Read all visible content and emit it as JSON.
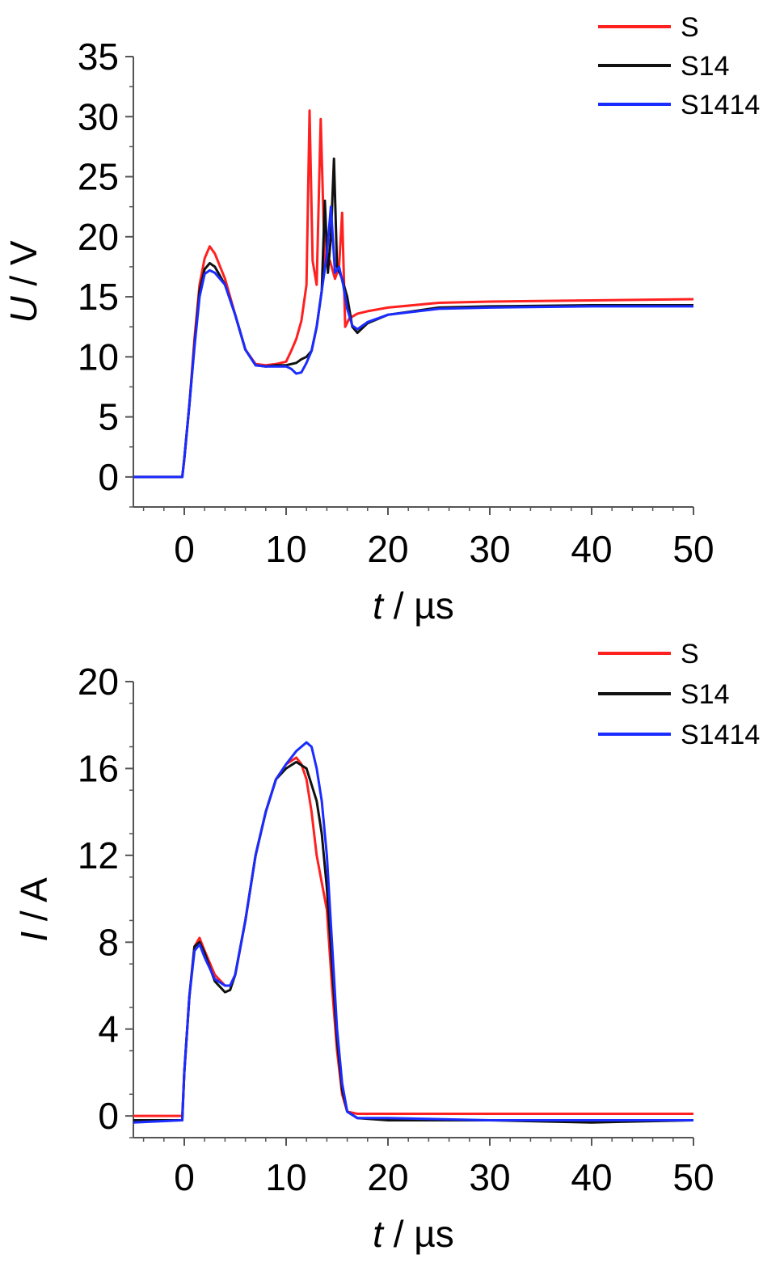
{
  "chart_data": [
    {
      "type": "line",
      "title": "",
      "xlabel_italic": "t",
      "xlabel_unit": " / µs",
      "ylabel_italic": "U",
      "ylabel_unit": " / V",
      "xlim": [
        -5,
        50
      ],
      "ylim": [
        -2.5,
        35
      ],
      "xticks": [
        0,
        10,
        20,
        30,
        40,
        50
      ],
      "yticks": [
        0,
        5,
        10,
        15,
        20,
        25,
        30,
        35
      ],
      "x_minor_step": 2,
      "y_minor_step": 2.5,
      "grid": false,
      "legend_position": "top-right",
      "series": [
        {
          "name": "S",
          "color": "#ff2020",
          "points": [
            [
              -5,
              0
            ],
            [
              -0.2,
              0
            ],
            [
              0,
              1.5
            ],
            [
              0.5,
              6
            ],
            [
              1,
              11.5
            ],
            [
              1.5,
              16
            ],
            [
              2,
              18.2
            ],
            [
              2.5,
              19.2
            ],
            [
              3,
              18.6
            ],
            [
              4,
              16.5
            ],
            [
              5,
              13.5
            ],
            [
              6,
              10.6
            ],
            [
              7,
              9.4
            ],
            [
              8,
              9.3
            ],
            [
              9,
              9.4
            ],
            [
              10,
              9.6
            ],
            [
              10.5,
              10.5
            ],
            [
              11,
              11.5
            ],
            [
              11.5,
              13
            ],
            [
              12,
              16
            ],
            [
              12.3,
              30.5
            ],
            [
              12.6,
              18
            ],
            [
              13,
              16
            ],
            [
              13.4,
              29.8
            ],
            [
              13.8,
              17.5
            ],
            [
              14.3,
              18
            ],
            [
              14.8,
              16.5
            ],
            [
              15.2,
              17.5
            ],
            [
              15.5,
              22
            ],
            [
              15.8,
              12.5
            ],
            [
              16.2,
              13.2
            ],
            [
              17,
              13.6
            ],
            [
              18,
              13.8
            ],
            [
              20,
              14.1
            ],
            [
              25,
              14.5
            ],
            [
              30,
              14.6
            ],
            [
              40,
              14.7
            ],
            [
              50,
              14.8
            ]
          ]
        },
        {
          "name": "S14",
          "color": "#111111",
          "points": [
            [
              -5,
              0
            ],
            [
              -0.2,
              0
            ],
            [
              0,
              1.5
            ],
            [
              0.5,
              6
            ],
            [
              1,
              11
            ],
            [
              1.5,
              15.5
            ],
            [
              2,
              17.3
            ],
            [
              2.5,
              17.8
            ],
            [
              3,
              17.5
            ],
            [
              4,
              16
            ],
            [
              5,
              13.5
            ],
            [
              6,
              10.6
            ],
            [
              7,
              9.3
            ],
            [
              8,
              9.2
            ],
            [
              9,
              9.3
            ],
            [
              10,
              9.3
            ],
            [
              11,
              9.5
            ],
            [
              11.5,
              9.8
            ],
            [
              12,
              10
            ],
            [
              12.5,
              10.5
            ],
            [
              13,
              12.5
            ],
            [
              13.5,
              15.5
            ],
            [
              13.8,
              23
            ],
            [
              14.1,
              17
            ],
            [
              14.4,
              20
            ],
            [
              14.7,
              26.5
            ],
            [
              15,
              17.5
            ],
            [
              15.5,
              16.5
            ],
            [
              16,
              15
            ],
            [
              16.5,
              12.5
            ],
            [
              17,
              12
            ],
            [
              18,
              12.8
            ],
            [
              20,
              13.5
            ],
            [
              25,
              14.1
            ],
            [
              30,
              14.2
            ],
            [
              40,
              14.3
            ],
            [
              50,
              14.3
            ]
          ]
        },
        {
          "name": "S1414",
          "color": "#1a2cff",
          "points": [
            [
              -5,
              0
            ],
            [
              -0.2,
              0
            ],
            [
              0,
              1.5
            ],
            [
              0.5,
              6
            ],
            [
              1,
              10.8
            ],
            [
              1.5,
              15
            ],
            [
              2,
              16.9
            ],
            [
              2.5,
              17.2
            ],
            [
              3,
              17
            ],
            [
              4,
              16
            ],
            [
              5,
              13.5
            ],
            [
              6,
              10.6
            ],
            [
              7,
              9.3
            ],
            [
              8,
              9.2
            ],
            [
              9,
              9.2
            ],
            [
              10,
              9.2
            ],
            [
              10.5,
              9
            ],
            [
              11,
              8.6
            ],
            [
              11.5,
              8.7
            ],
            [
              12,
              9.5
            ],
            [
              12.5,
              10.5
            ],
            [
              13,
              12.5
            ],
            [
              13.5,
              15.5
            ],
            [
              14,
              18.5
            ],
            [
              14.4,
              22.5
            ],
            [
              14.8,
              17
            ],
            [
              15.2,
              17.5
            ],
            [
              15.6,
              16
            ],
            [
              16,
              14
            ],
            [
              16.5,
              12.6
            ],
            [
              17,
              12.3
            ],
            [
              18,
              12.9
            ],
            [
              20,
              13.5
            ],
            [
              25,
              14
            ],
            [
              30,
              14.1
            ],
            [
              40,
              14.2
            ],
            [
              50,
              14.2
            ]
          ]
        }
      ]
    },
    {
      "type": "line",
      "title": "",
      "xlabel_italic": "t",
      "xlabel_unit": " / µs",
      "ylabel_italic": "I",
      "ylabel_unit": " / A",
      "xlim": [
        -5,
        50
      ],
      "ylim": [
        -1,
        20
      ],
      "xticks": [
        0,
        10,
        20,
        30,
        40,
        50
      ],
      "yticks": [
        0,
        4,
        8,
        12,
        16,
        20
      ],
      "x_minor_step": 2,
      "y_minor_step": 2,
      "grid": false,
      "legend_position": "top-right",
      "series": [
        {
          "name": "S",
          "color": "#ff2020",
          "points": [
            [
              -5,
              0
            ],
            [
              -0.2,
              0
            ],
            [
              0,
              2
            ],
            [
              0.5,
              5.5
            ],
            [
              1,
              7.8
            ],
            [
              1.5,
              8.2
            ],
            [
              2,
              7.6
            ],
            [
              3,
              6.5
            ],
            [
              4,
              6
            ],
            [
              4.5,
              6
            ],
            [
              5,
              6.5
            ],
            [
              6,
              9
            ],
            [
              7,
              12
            ],
            [
              8,
              14
            ],
            [
              9,
              15.5
            ],
            [
              10,
              16.2
            ],
            [
              11,
              16.5
            ],
            [
              11.5,
              16.2
            ],
            [
              12,
              15.5
            ],
            [
              12.5,
              14
            ],
            [
              13,
              12
            ],
            [
              14,
              9.5
            ],
            [
              14.5,
              6
            ],
            [
              15,
              3
            ],
            [
              15.5,
              1
            ],
            [
              16,
              0.2
            ],
            [
              17,
              0.1
            ],
            [
              20,
              0.1
            ],
            [
              30,
              0.1
            ],
            [
              40,
              0.1
            ],
            [
              50,
              0.1
            ]
          ]
        },
        {
          "name": "S14",
          "color": "#111111",
          "points": [
            [
              -5,
              -0.2
            ],
            [
              -0.2,
              -0.2
            ],
            [
              0,
              2
            ],
            [
              0.5,
              5.5
            ],
            [
              1,
              7.8
            ],
            [
              1.5,
              8
            ],
            [
              2,
              7.5
            ],
            [
              3,
              6.2
            ],
            [
              4,
              5.7
            ],
            [
              4.5,
              5.8
            ],
            [
              5,
              6.5
            ],
            [
              6,
              9
            ],
            [
              7,
              12
            ],
            [
              8,
              14
            ],
            [
              9,
              15.5
            ],
            [
              10,
              16
            ],
            [
              11,
              16.3
            ],
            [
              12,
              16
            ],
            [
              13,
              14.5
            ],
            [
              13.5,
              13
            ],
            [
              14,
              10.5
            ],
            [
              14.5,
              7
            ],
            [
              15,
              3.5
            ],
            [
              15.5,
              1.2
            ],
            [
              16,
              0.2
            ],
            [
              17,
              -0.1
            ],
            [
              20,
              -0.2
            ],
            [
              30,
              -0.2
            ],
            [
              40,
              -0.3
            ],
            [
              50,
              -0.2
            ]
          ]
        },
        {
          "name": "S1414",
          "color": "#1a2cff",
          "points": [
            [
              -5,
              -0.3
            ],
            [
              -0.2,
              -0.2
            ],
            [
              0,
              2
            ],
            [
              0.5,
              5.5
            ],
            [
              1,
              7.6
            ],
            [
              1.5,
              7.9
            ],
            [
              2,
              7.3
            ],
            [
              3,
              6.3
            ],
            [
              4,
              6
            ],
            [
              4.5,
              6
            ],
            [
              5,
              6.5
            ],
            [
              6,
              9
            ],
            [
              7,
              12
            ],
            [
              8,
              14
            ],
            [
              9,
              15.5
            ],
            [
              10,
              16.2
            ],
            [
              11,
              16.8
            ],
            [
              12,
              17.2
            ],
            [
              12.5,
              17
            ],
            [
              13,
              16
            ],
            [
              13.5,
              14.5
            ],
            [
              14,
              12
            ],
            [
              14.5,
              8
            ],
            [
              15,
              4
            ],
            [
              15.5,
              1.5
            ],
            [
              16,
              0.2
            ],
            [
              17,
              -0.1
            ],
            [
              20,
              -0.1
            ],
            [
              30,
              -0.2
            ],
            [
              40,
              -0.2
            ],
            [
              50,
              -0.2
            ]
          ]
        }
      ]
    }
  ]
}
